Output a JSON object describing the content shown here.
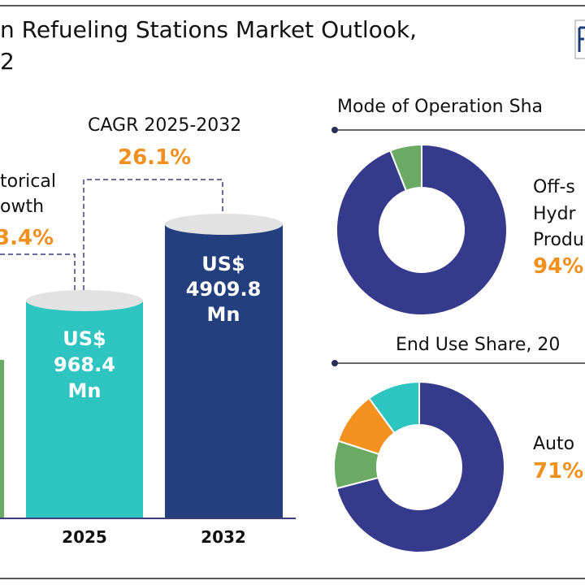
{
  "title": {
    "line1": "n Refueling Stations Market Outlook,",
    "line2": "2"
  },
  "logo": {
    "text": "F"
  },
  "colors": {
    "navy_bar": "#233f7d",
    "teal": "#2ec4c0",
    "green": "#6aaa64",
    "orange": "#f5911e",
    "donut_navy": "#363a8c",
    "cap": "#e2e2e2",
    "pct_text": "#f0901e"
  },
  "historical": {
    "line1": "torical",
    "line2": "owth",
    "value": "3.4%"
  },
  "cagr": {
    "label": "CAGR 2025-2032",
    "value": "26.1%"
  },
  "mode_share": {
    "title": "Mode of Operation Sha",
    "label_lines": [
      "Off-s",
      "Hydr",
      "Produ"
    ],
    "value": "94%"
  },
  "end_use": {
    "title": "End Use Share, 20",
    "label": "Auto",
    "value": "71%"
  },
  "chart_data": [
    {
      "type": "bar",
      "categories": [
        "2025",
        "2032"
      ],
      "values": [
        968.4,
        4909.8
      ],
      "data_labels": [
        {
          "currency": "US$",
          "amount": "968.4",
          "unit": "Mn"
        },
        {
          "currency": "US$",
          "amount": "4909.8",
          "unit": "Mn"
        }
      ],
      "bar_colors": [
        "#2ec4c0",
        "#233f7d"
      ]
    },
    {
      "type": "pie",
      "title": "Mode of Operation Sha",
      "donut": true,
      "slices": [
        {
          "value": 94,
          "color": "#363a8c"
        },
        {
          "value": 6,
          "color": "#6aaa64"
        }
      ]
    },
    {
      "type": "pie",
      "title": "End Use Share, 20",
      "donut": true,
      "slices": [
        {
          "value": 71,
          "color": "#363a8c"
        },
        {
          "value": 9,
          "color": "#6aaa64"
        },
        {
          "value": 10,
          "color": "#f5911e"
        },
        {
          "value": 10,
          "color": "#2ec4c0"
        }
      ]
    }
  ]
}
